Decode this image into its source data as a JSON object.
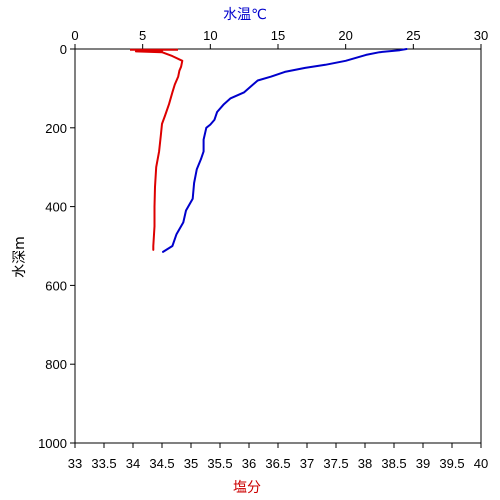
{
  "chart_data": {
    "type": "line",
    "top_axis_label": "水温℃",
    "bottom_axis_label": "塩分",
    "y_axis_label": "水深m",
    "y_range": [
      1000,
      0
    ],
    "top_axis_range": [
      0,
      30
    ],
    "bottom_axis_range": [
      33,
      40
    ],
    "grid": false,
    "y_ticks": [
      "0",
      "200",
      "400",
      "600",
      "800",
      "1000"
    ],
    "top_ticks": [
      "0",
      "5",
      "10",
      "15",
      "20",
      "25",
      "30"
    ],
    "bottom_ticks": [
      "33",
      "33.5",
      "34",
      "34.5",
      "35",
      "35.5",
      "36",
      "36.5",
      "37",
      "37.5",
      "38",
      "38.5",
      "39",
      "39.5",
      "40"
    ],
    "colors": {
      "temperature": "#0000cc",
      "salinity": "#dd0000",
      "top_axis_title": "#0000cc",
      "bottom_axis_title": "#cc0000"
    },
    "series": [
      {
        "axis": "top",
        "points": [
          [
            24.5,
            0
          ],
          [
            24,
            3
          ],
          [
            22.5,
            8
          ],
          [
            21.5,
            15
          ],
          [
            20,
            30
          ],
          [
            18.5,
            40
          ],
          [
            17,
            48
          ],
          [
            15.5,
            58
          ],
          [
            14.5,
            70
          ],
          [
            13.5,
            80
          ],
          [
            13,
            95
          ],
          [
            12.5,
            110
          ],
          [
            11.5,
            125
          ],
          [
            11,
            140
          ],
          [
            10.5,
            160
          ],
          [
            10.3,
            180
          ],
          [
            10,
            192
          ],
          [
            9.7,
            200
          ],
          [
            9.5,
            230
          ],
          [
            9.5,
            260
          ],
          [
            9.3,
            280
          ],
          [
            9,
            305
          ],
          [
            8.8,
            340
          ],
          [
            8.7,
            380
          ],
          [
            8.2,
            410
          ],
          [
            8.0,
            440
          ],
          [
            7.5,
            470
          ],
          [
            7.2,
            500
          ],
          [
            6.5,
            515
          ]
        ]
      },
      {
        "axis": "bottom",
        "points": [
          [
            34.5,
            5
          ],
          [
            34.05,
            6
          ],
          [
            34.5,
            8
          ],
          [
            34.68,
            18
          ],
          [
            34.85,
            30
          ],
          [
            34.83,
            45
          ],
          [
            34.8,
            55
          ],
          [
            34.78,
            70
          ],
          [
            34.72,
            90
          ],
          [
            34.68,
            110
          ],
          [
            34.62,
            140
          ],
          [
            34.55,
            170
          ],
          [
            34.5,
            190
          ],
          [
            34.48,
            220
          ],
          [
            34.45,
            260
          ],
          [
            34.4,
            300
          ],
          [
            34.38,
            350
          ],
          [
            34.37,
            400
          ],
          [
            34.37,
            450
          ],
          [
            34.35,
            500
          ],
          [
            34.35,
            510
          ]
        ]
      }
    ]
  }
}
